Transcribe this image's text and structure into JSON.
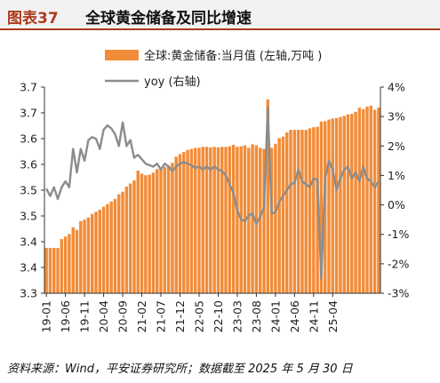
{
  "figure": {
    "number": "图表37",
    "title": "全球黄金储备及同比增速",
    "source": "资料来源：Wind，平安证券研究所；数据截至 2025 年 5 月 30 日"
  },
  "chart_data": {
    "type": "bar+line",
    "legend_position": "top-center",
    "grid": false,
    "series": [
      {
        "name": "全球:黄金储备:当月值 (左轴,万吨 )",
        "type": "bar",
        "axis": "left",
        "color": "#f28c38",
        "values": [
          3.388,
          3.388,
          3.388,
          3.388,
          3.405,
          3.41,
          3.415,
          3.428,
          3.423,
          3.44,
          3.443,
          3.447,
          3.454,
          3.458,
          3.462,
          3.468,
          3.473,
          3.478,
          3.483,
          3.492,
          3.497,
          3.507,
          3.513,
          3.519,
          3.538,
          3.532,
          3.529,
          3.53,
          3.534,
          3.541,
          3.542,
          3.545,
          3.548,
          3.553,
          3.565,
          3.57,
          3.574,
          3.578,
          3.58,
          3.582,
          3.582,
          3.584,
          3.584,
          3.583,
          3.584,
          3.583,
          3.584,
          3.584,
          3.585,
          3.588,
          3.584,
          3.585,
          3.587,
          3.582,
          3.589,
          3.587,
          3.582,
          3.58,
          3.676,
          3.582,
          3.59,
          3.601,
          3.604,
          3.612,
          3.617,
          3.617,
          3.617,
          3.617,
          3.617,
          3.62,
          3.622,
          3.623,
          3.633,
          3.634,
          3.637,
          3.639,
          3.64,
          3.642,
          3.644,
          3.647,
          3.648,
          3.652,
          3.66,
          3.657,
          3.662,
          3.664,
          3.656,
          3.66
        ]
      },
      {
        "name": "yoy (右轴)",
        "type": "line",
        "axis": "right",
        "color": "#8c8c8c",
        "values": [
          0.55,
          0.3,
          0.6,
          0.2,
          0.6,
          0.8,
          0.6,
          1.9,
          1.1,
          1.9,
          1.5,
          2.2,
          2.3,
          2.25,
          1.9,
          2.55,
          2.7,
          2.6,
          2.4,
          2.0,
          2.8,
          2.0,
          2.2,
          1.6,
          1.7,
          1.55,
          1.4,
          1.35,
          1.3,
          1.4,
          1.2,
          1.4,
          1.3,
          1.15,
          1.3,
          1.4,
          1.45,
          1.4,
          1.35,
          1.25,
          1.3,
          1.2,
          1.3,
          1.2,
          1.3,
          1.2,
          1.15,
          1.0,
          0.7,
          0.4,
          -0.2,
          -0.5,
          -0.55,
          -0.35,
          -0.3,
          -0.65,
          -0.4,
          -0.1,
          3.3,
          -0.3,
          -0.25,
          0.1,
          0.3,
          0.5,
          0.7,
          0.75,
          1.2,
          0.8,
          0.7,
          0.6,
          0.9,
          0.85,
          -2.5,
          0.9,
          1.5,
          1.2,
          0.5,
          0.9,
          1.2,
          1.3,
          0.9,
          1.1,
          0.8,
          1.3,
          0.9,
          0.8,
          0.6,
          0.8
        ]
      }
    ],
    "x_tick_labels": [
      "19-01",
      "19-06",
      "19-11",
      "20-04",
      "20-09",
      "21-02",
      "21-07",
      "21-12",
      "22-05",
      "22-10",
      "23-03",
      "23-08",
      "24-01",
      "24-06",
      "24-11",
      "25-04"
    ],
    "x_tick_step_months": 5,
    "y_left": {
      "min": 3.3,
      "max": 3.7,
      "tick_labels": [
        "3.3",
        "3.4",
        "3.4",
        "3.5",
        "3.5",
        "3.6",
        "3.6",
        "3.7",
        "3.7"
      ]
    },
    "y_right": {
      "min": -3,
      "max": 4,
      "tick_labels": [
        "-3%",
        "-2%",
        "-1%",
        "0%",
        "1%",
        "2%",
        "3%",
        "4%"
      ]
    }
  }
}
